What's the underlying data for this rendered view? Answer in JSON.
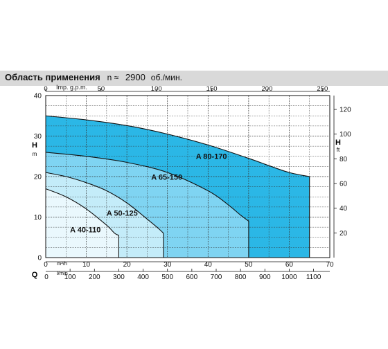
{
  "header": {
    "title": "Область применения",
    "speed_label": "n ≈",
    "speed_value": "2900",
    "speed_unit": "об./мин."
  },
  "chart_data": {
    "type": "area",
    "ylabel_left": "H",
    "ylabel_left_unit": "m",
    "ylabel_right": "H",
    "ylabel_right_unit": "ft",
    "ylim": [
      0,
      40
    ],
    "ylim_ft": [
      0,
      131.2
    ],
    "yticks_left": [
      "0",
      "10",
      "20",
      "30",
      "40"
    ],
    "yticks_right": [
      "20",
      "40",
      "60",
      "80",
      "100",
      "120"
    ],
    "x_label_q": "Q",
    "xunit_m3h": "m³/h",
    "xunit_lmin": "l/min",
    "xunit_top": "Imp. g.p.m.",
    "xlim_m3h": [
      0,
      70
    ],
    "xticks_m3h": [
      "0",
      "10",
      "20",
      "30",
      "40",
      "50",
      "60",
      "70"
    ],
    "xticks_lmin": [
      "100",
      "200",
      "300",
      "400",
      "500",
      "600",
      "700",
      "800",
      "900",
      "1000",
      "1100"
    ],
    "xticks_gpm": [
      "0",
      "50",
      "100",
      "150",
      "200",
      "250"
    ],
    "series": [
      {
        "name": "A 40-110",
        "color": "#eaf8fd",
        "x": [
          0,
          5,
          10,
          15,
          17,
          18
        ],
        "y": [
          17,
          15,
          12,
          8,
          6,
          5.5
        ]
      },
      {
        "name": "A 50-125",
        "color": "#c4ecf9",
        "x": [
          0,
          5,
          10,
          15,
          20,
          25,
          28,
          29
        ],
        "y": [
          21,
          20,
          18.5,
          16.5,
          13.5,
          9.5,
          7,
          6
        ]
      },
      {
        "name": "A 65-150",
        "color": "#7fd4f2",
        "x": [
          0,
          10,
          20,
          30,
          40,
          45,
          48,
          50
        ],
        "y": [
          26,
          25,
          23.5,
          21,
          16.5,
          13,
          10.5,
          9
        ]
      },
      {
        "name": "A 80-170",
        "color": "#2bb7e6",
        "x": [
          0,
          10,
          20,
          30,
          40,
          50,
          55,
          60,
          65
        ],
        "y": [
          35,
          34,
          32.6,
          30.5,
          27.8,
          24.5,
          22.7,
          21,
          20
        ]
      }
    ],
    "grid": true
  }
}
